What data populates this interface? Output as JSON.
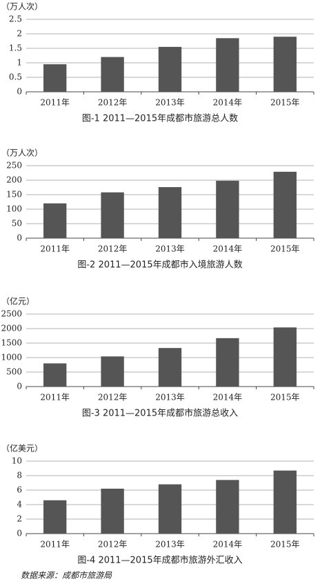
{
  "chart_data": [
    {
      "type": "bar",
      "y_label": "（万人次）",
      "title": "图-1  2011—2015年成都市旅游总人数",
      "categories": [
        "2011年",
        "2012年",
        "2013年",
        "2014年",
        "2015年"
      ],
      "values": [
        0.95,
        1.2,
        1.55,
        1.85,
        1.9
      ],
      "color": "#555555",
      "ylim": [
        0,
        2.5
      ],
      "yticks": [
        0,
        0.5,
        1,
        1.5,
        2,
        2.5
      ],
      "grid": true
    },
    {
      "type": "bar",
      "y_label": "（万人次）",
      "title": "图-2  2011—2015年成都市入境旅游人数",
      "categories": [
        "2011年",
        "2012年",
        "2013年",
        "2014年",
        "2015年"
      ],
      "values": [
        120,
        158,
        176,
        198,
        229
      ],
      "color": "#555555",
      "ylim": [
        0,
        250
      ],
      "yticks": [
        0,
        50,
        100,
        150,
        200,
        250
      ],
      "grid": true
    },
    {
      "type": "bar",
      "y_label": "（亿元）",
      "title": "图-3  2011—2015年成都市旅游总收入",
      "categories": [
        "2011年",
        "2012年",
        "2013年",
        "2014年",
        "2015年"
      ],
      "values": [
        800,
        1040,
        1330,
        1670,
        2040
      ],
      "color": "#555555",
      "ylim": [
        0,
        2500
      ],
      "yticks": [
        0,
        500,
        1000,
        1500,
        2000,
        2500
      ],
      "grid": true
    },
    {
      "type": "bar",
      "y_label": "（亿美元）",
      "title": "图-4  2011—2015年成都市旅游外汇收入",
      "categories": [
        "2011年",
        "2012年",
        "2013年",
        "2014年",
        "2015年"
      ],
      "values": [
        4.6,
        6.2,
        6.8,
        7.4,
        8.7
      ],
      "color": "#555555",
      "ylim": [
        0,
        10
      ],
      "yticks": [
        0,
        2,
        4,
        6,
        8,
        10
      ],
      "grid": true
    }
  ],
  "source": "数据来源：成都市旅游局"
}
